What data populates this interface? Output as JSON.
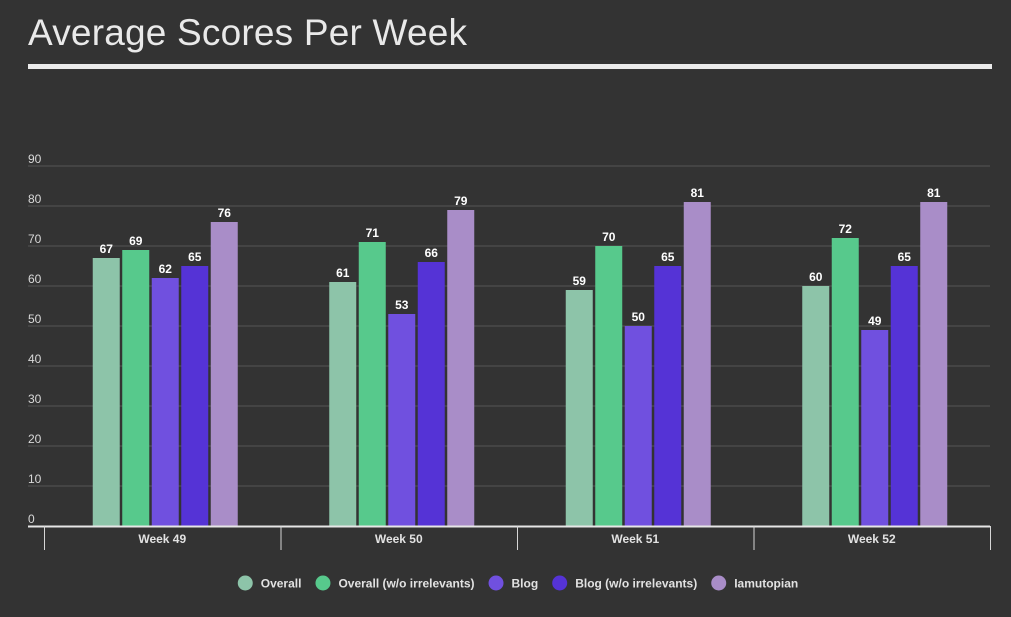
{
  "title": "Average Scores Per Week",
  "chart_data": {
    "type": "bar",
    "title": "Average Scores Per Week",
    "categories": [
      "Week 49",
      "Week 50",
      "Week 51",
      "Week 52"
    ],
    "series": [
      {
        "name": "Overall",
        "color": "#8dc4a9",
        "values": [
          67,
          61,
          59,
          60
        ]
      },
      {
        "name": "Overall (w/o irrelevants)",
        "color": "#57c98c",
        "values": [
          69,
          71,
          70,
          72
        ]
      },
      {
        "name": "Blog",
        "color": "#7050df",
        "values": [
          62,
          53,
          50,
          49
        ]
      },
      {
        "name": "Blog (w/o irrelevants)",
        "color": "#5533d6",
        "values": [
          65,
          66,
          65,
          65
        ]
      },
      {
        "name": "Iamutopian",
        "color": "#a98dc8",
        "values": [
          76,
          79,
          81,
          81
        ]
      }
    ],
    "yticks": [
      "0",
      "10",
      "20",
      "30",
      "40",
      "50",
      "60",
      "70",
      "80",
      "90"
    ],
    "ylim": [
      0,
      90
    ],
    "xlabel": "",
    "ylabel": "",
    "grid": true,
    "legend_position": "bottom",
    "data_labels": true
  }
}
